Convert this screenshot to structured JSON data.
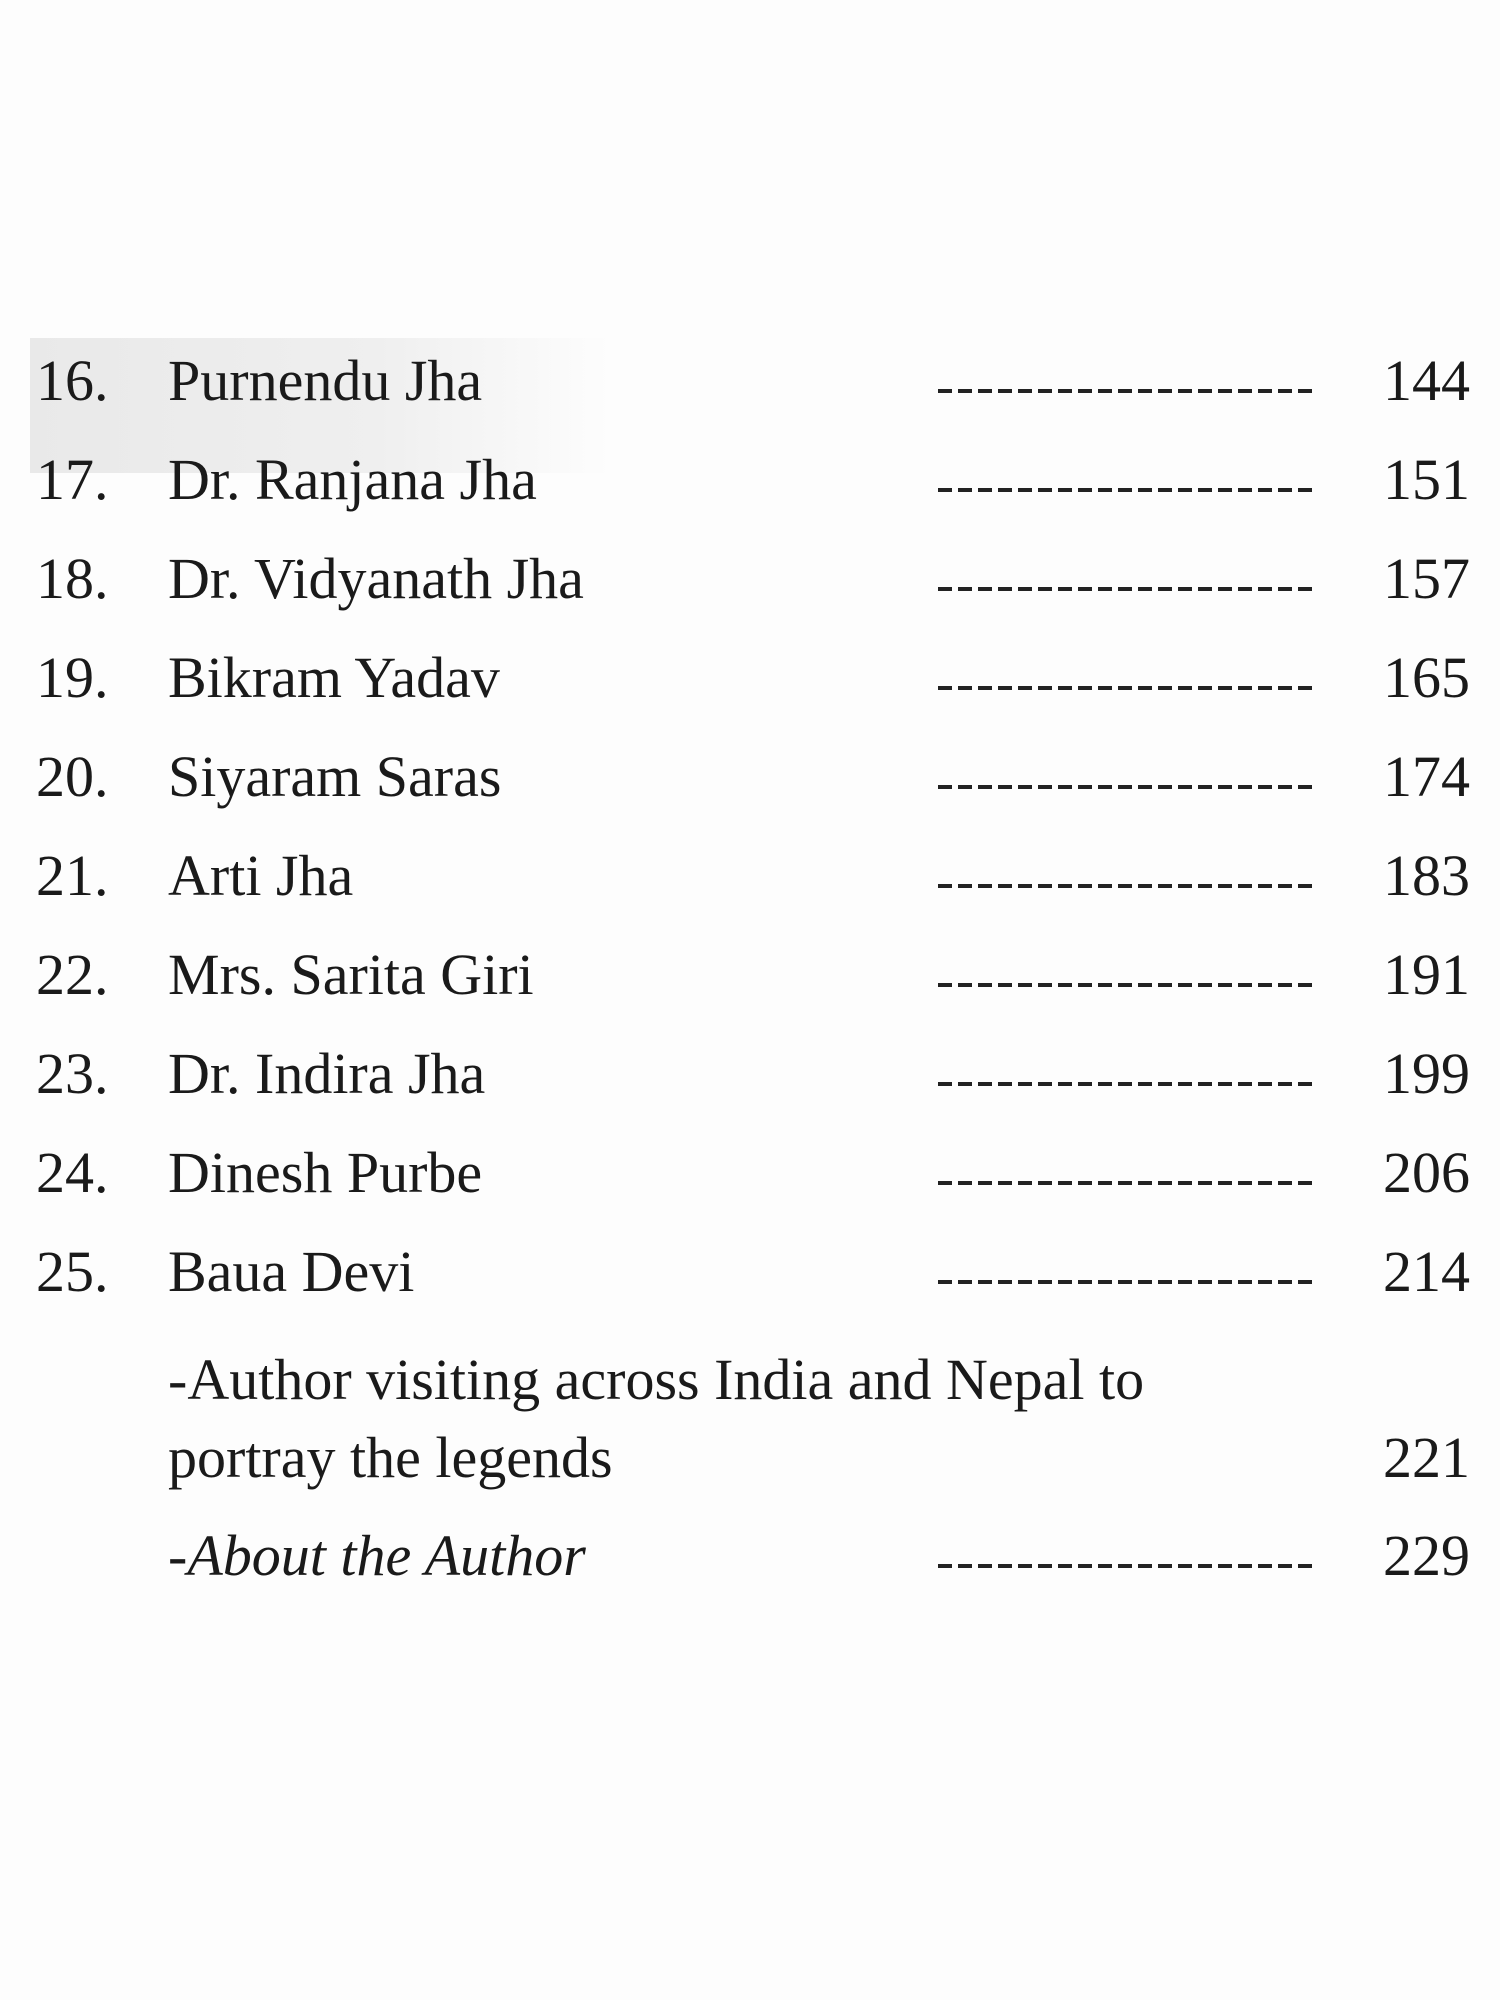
{
  "entries": [
    {
      "num": "16.",
      "title": "Purnendu Jha",
      "page": "144"
    },
    {
      "num": "17.",
      "title": "Dr. Ranjana Jha",
      "page": "151"
    },
    {
      "num": "18.",
      "title": "Dr. Vidyanath Jha",
      "page": "157"
    },
    {
      "num": "19.",
      "title": "Bikram Yadav",
      "page": "165"
    },
    {
      "num": "20.",
      "title": "Siyaram Saras",
      "page": "174"
    },
    {
      "num": "21.",
      "title": "Arti Jha",
      "page": "183"
    },
    {
      "num": "22.",
      "title": "Mrs. Sarita Giri",
      "page": "191"
    },
    {
      "num": "23.",
      "title": "Dr. Indira Jha",
      "page": "199"
    },
    {
      "num": "24.",
      "title": "Dinesh Purbe",
      "page": "206"
    },
    {
      "num": "25.",
      "title": "Baua Devi",
      "page": "214"
    }
  ],
  "extra": {
    "line1": "-Author visiting across India and Nepal to",
    "line2": "portray the legends",
    "page": "221"
  },
  "about": {
    "title": "-About the Author",
    "page": "229"
  }
}
